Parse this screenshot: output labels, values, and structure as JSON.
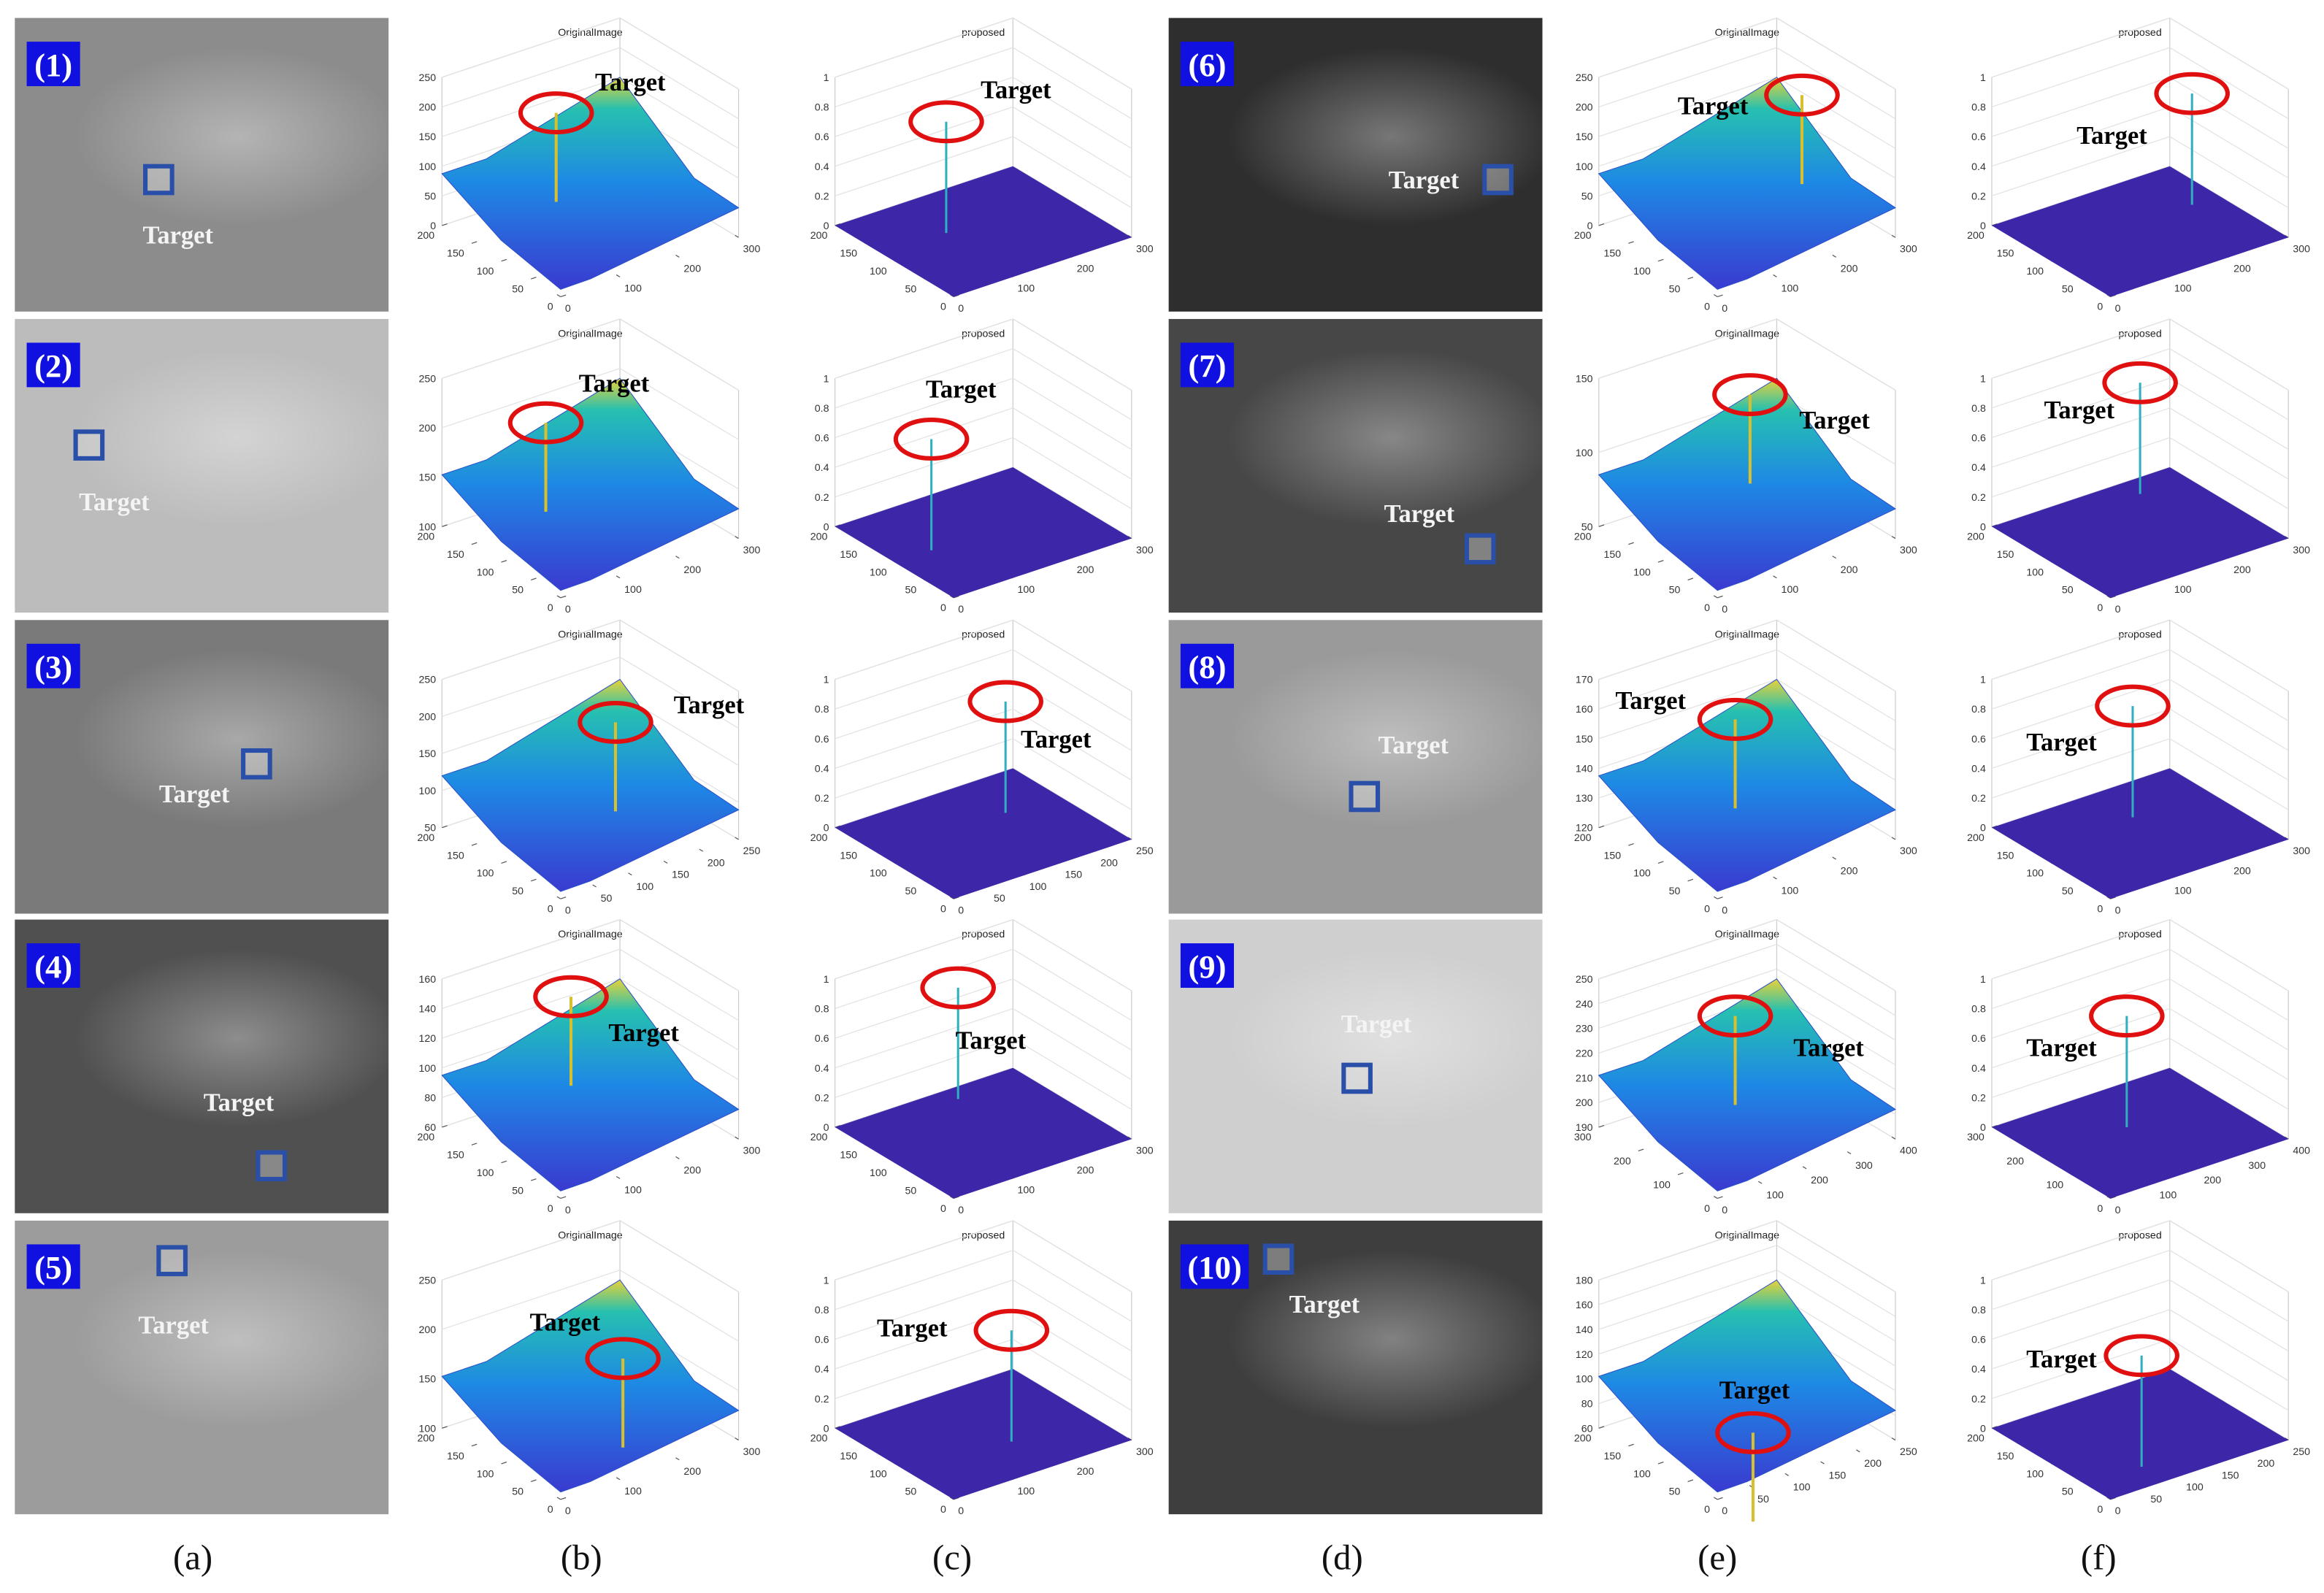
{
  "figure": {
    "rows": [
      {
        "label": "(1)",
        "image_target": "Target",
        "surface": {
          "title": "OriginalImage",
          "target": "Target",
          "zticks": [
            0,
            50,
            100,
            150,
            200,
            250
          ],
          "yticks": [
            200,
            150,
            100,
            50,
            0
          ],
          "xticks": [
            0,
            100,
            200,
            300
          ]
        },
        "result": {
          "title": "proposed",
          "target": "Target",
          "zticks": [
            0,
            0.2,
            0.4,
            0.6,
            0.8,
            1
          ],
          "yticks": [
            200,
            150,
            100,
            50,
            0
          ],
          "xticks": [
            0,
            100,
            200,
            300
          ]
        }
      },
      {
        "label": "(2)",
        "image_target": "Target",
        "surface": {
          "title": "OriginalImage",
          "target": "Target",
          "zticks": [
            100,
            150,
            200,
            250
          ],
          "yticks": [
            200,
            150,
            100,
            50,
            0
          ],
          "xticks": [
            0,
            100,
            200,
            300
          ]
        },
        "result": {
          "title": "proposed",
          "target": "Target",
          "zticks": [
            0,
            0.2,
            0.4,
            0.6,
            0.8,
            1
          ],
          "yticks": [
            200,
            150,
            100,
            50,
            0
          ],
          "xticks": [
            0,
            100,
            200,
            300
          ]
        }
      },
      {
        "label": "(3)",
        "image_target": "Target",
        "surface": {
          "title": "OriginalImage",
          "target": "Target",
          "zticks": [
            50,
            100,
            150,
            200,
            250
          ],
          "yticks": [
            200,
            150,
            100,
            50,
            0
          ],
          "xticks": [
            0,
            50,
            100,
            150,
            200,
            250
          ]
        },
        "result": {
          "title": "proposed",
          "target": "Target",
          "zticks": [
            0,
            0.2,
            0.4,
            0.6,
            0.8,
            1
          ],
          "yticks": [
            200,
            150,
            100,
            50,
            0
          ],
          "xticks": [
            0,
            50,
            100,
            150,
            200,
            250
          ]
        }
      },
      {
        "label": "(4)",
        "image_target": "Target",
        "surface": {
          "title": "OriginalImage",
          "target": "Target",
          "zticks": [
            60,
            80,
            100,
            120,
            140,
            160
          ],
          "yticks": [
            200,
            150,
            100,
            50,
            0
          ],
          "xticks": [
            0,
            100,
            200,
            300
          ]
        },
        "result": {
          "title": "proposed",
          "target": "Target",
          "zticks": [
            0,
            0.2,
            0.4,
            0.6,
            0.8,
            1
          ],
          "yticks": [
            200,
            150,
            100,
            50,
            0
          ],
          "xticks": [
            0,
            100,
            200,
            300
          ]
        }
      },
      {
        "label": "(5)",
        "image_target": "Target",
        "surface": {
          "title": "OriginalImage",
          "target": "Target",
          "zticks": [
            100,
            150,
            200,
            250
          ],
          "yticks": [
            200,
            150,
            100,
            50,
            0
          ],
          "xticks": [
            0,
            100,
            200,
            300
          ]
        },
        "result": {
          "title": "proposed",
          "target": "Target",
          "zticks": [
            0,
            0.2,
            0.4,
            0.6,
            0.8,
            1
          ],
          "yticks": [
            200,
            150,
            100,
            50,
            0
          ],
          "xticks": [
            0,
            100,
            200,
            300
          ]
        }
      },
      {
        "label": "(6)",
        "image_target": "Target",
        "surface": {
          "title": "OriginalImage",
          "target": "Target",
          "zticks": [
            0,
            50,
            100,
            150,
            200,
            250
          ],
          "yticks": [
            200,
            150,
            100,
            50,
            0
          ],
          "xticks": [
            0,
            100,
            200,
            300
          ]
        },
        "result": {
          "title": "proposed",
          "target": "Target",
          "zticks": [
            0,
            0.2,
            0.4,
            0.6,
            0.8,
            1
          ],
          "yticks": [
            200,
            150,
            100,
            50,
            0
          ],
          "xticks": [
            0,
            100,
            200,
            300
          ]
        }
      },
      {
        "label": "(7)",
        "image_target": "Target",
        "surface": {
          "title": "OriginalImage",
          "target": "Target",
          "zticks": [
            50,
            100,
            150
          ],
          "yticks": [
            200,
            150,
            100,
            50,
            0
          ],
          "xticks": [
            0,
            100,
            200,
            300
          ]
        },
        "result": {
          "title": "proposed",
          "target": "Target",
          "zticks": [
            0,
            0.2,
            0.4,
            0.6,
            0.8,
            1
          ],
          "yticks": [
            200,
            150,
            100,
            50,
            0
          ],
          "xticks": [
            0,
            100,
            200,
            300
          ]
        }
      },
      {
        "label": "(8)",
        "image_target": "Target",
        "surface": {
          "title": "OriginalImage",
          "target": "Target",
          "zticks": [
            120,
            130,
            140,
            150,
            160,
            170
          ],
          "yticks": [
            200,
            150,
            100,
            50,
            0
          ],
          "xticks": [
            0,
            100,
            200,
            300
          ]
        },
        "result": {
          "title": "proposed",
          "target": "Target",
          "zticks": [
            0,
            0.2,
            0.4,
            0.6,
            0.8,
            1
          ],
          "yticks": [
            200,
            150,
            100,
            50,
            0
          ],
          "xticks": [
            0,
            100,
            200,
            300
          ]
        }
      },
      {
        "label": "(9)",
        "image_target": "Target",
        "surface": {
          "title": "OriginalImage",
          "target": "Target",
          "zticks": [
            190,
            200,
            210,
            220,
            230,
            240,
            250
          ],
          "yticks": [
            300,
            200,
            100,
            0
          ],
          "xticks": [
            0,
            100,
            200,
            300,
            400
          ]
        },
        "result": {
          "title": "proposed",
          "target": "Target",
          "zticks": [
            0,
            0.2,
            0.4,
            0.6,
            0.8,
            1
          ],
          "yticks": [
            300,
            200,
            100,
            0
          ],
          "xticks": [
            0,
            100,
            200,
            300,
            400
          ]
        }
      },
      {
        "label": "(10)",
        "image_target": "Target",
        "surface": {
          "title": "OriginalImage",
          "target": "Target",
          "zticks": [
            60,
            80,
            100,
            120,
            140,
            160,
            180
          ],
          "yticks": [
            200,
            150,
            100,
            50,
            0
          ],
          "xticks": [
            0,
            50,
            100,
            150,
            200,
            250
          ]
        },
        "result": {
          "title": "proposed",
          "target": "Target",
          "zticks": [
            0,
            0.2,
            0.4,
            0.6,
            0.8,
            1
          ],
          "yticks": [
            200,
            150,
            100,
            50,
            0
          ],
          "xticks": [
            0,
            50,
            100,
            150,
            200,
            250
          ]
        }
      }
    ],
    "captions": [
      "(a)",
      "(b)",
      "(c)",
      "(d)",
      "(e)",
      "(f)"
    ]
  }
}
